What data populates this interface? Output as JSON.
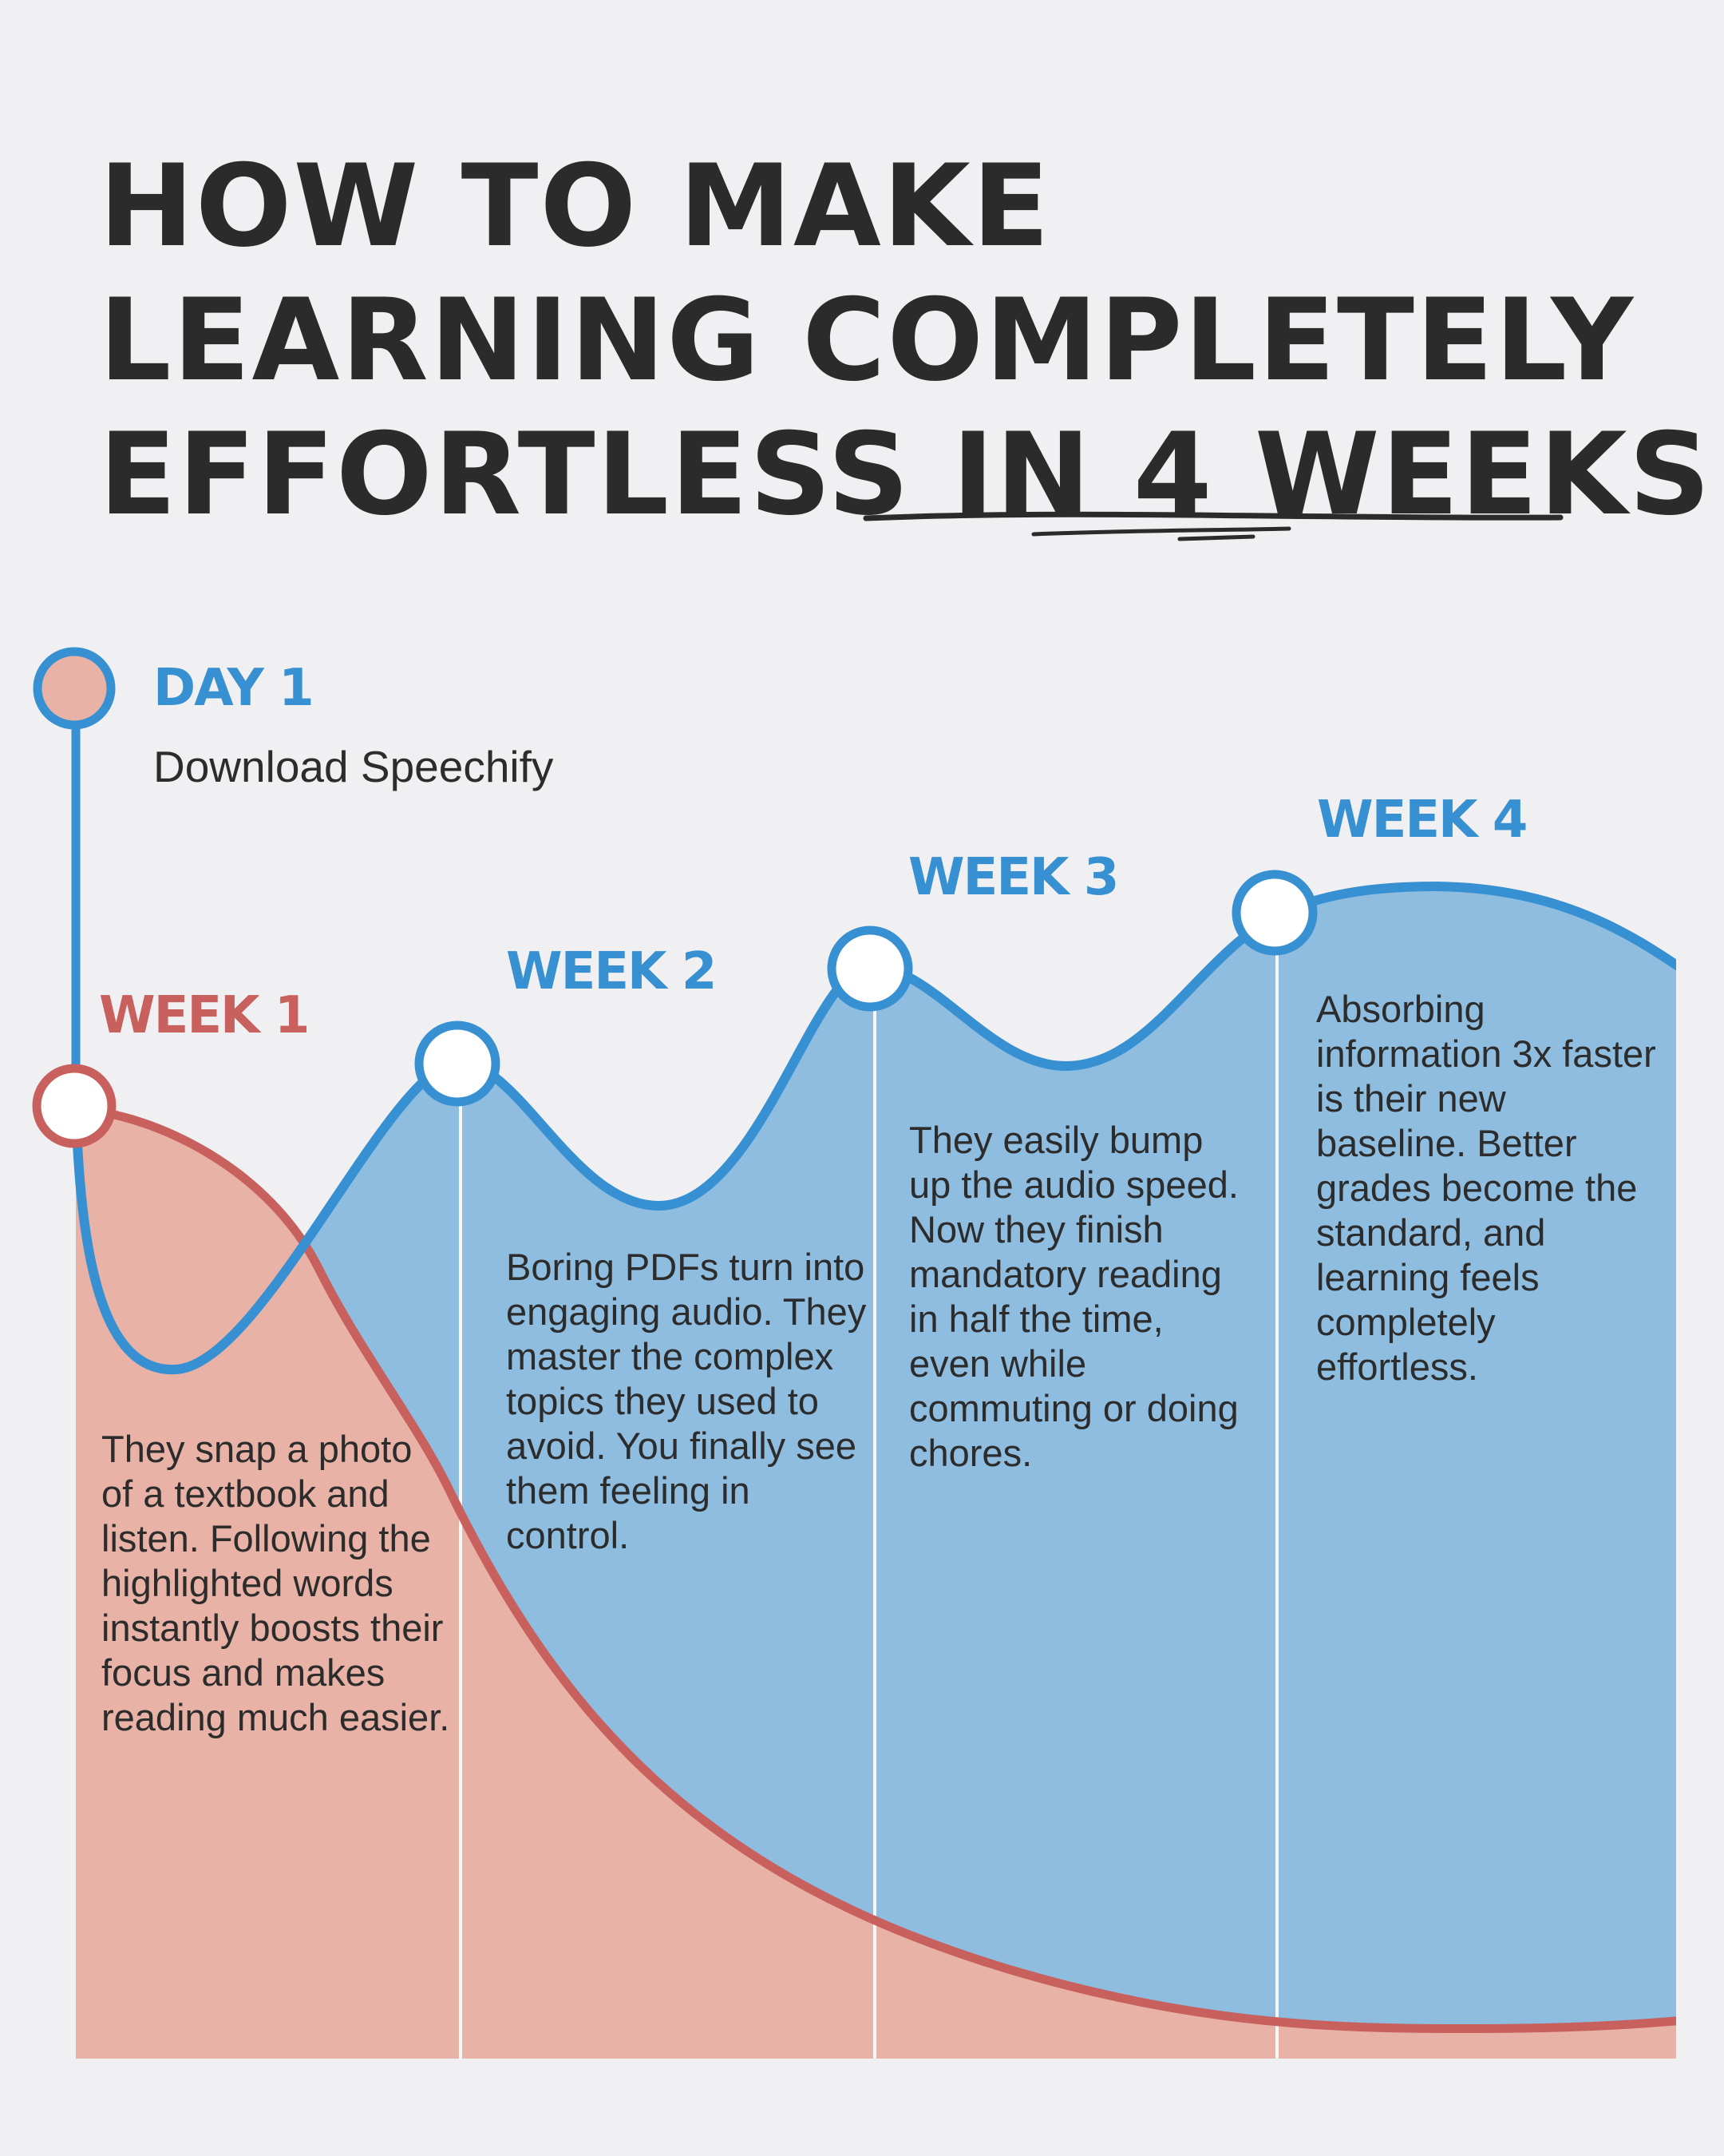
{
  "title": {
    "line1": "HOW TO MAKE",
    "line2": "LEARNING COMPLETELY",
    "line3_prefix": "EFFORTLESS ",
    "line3_emphasis": "IN 4 WEEKS"
  },
  "milestones": [
    {
      "label": "DAY 1",
      "subtitle": "Download Speechify",
      "color": "#3690d1"
    },
    {
      "label": "WEEK 1",
      "color": "#c8605e",
      "text": "They snap a photo of a textbook and listen. Following the highlighted words instantly boosts their focus and makes reading much easier."
    },
    {
      "label": "WEEK 2",
      "color": "#3690d1",
      "text": "Boring PDFs turn into engaging audio. They master the complex topics they used to avoid. You finally see them feeling in control."
    },
    {
      "label": "WEEK 3",
      "color": "#3690d1",
      "text": "They easily bump up the audio speed. Now they finish mandatory reading in half the time, even while commuting or doing chores."
    },
    {
      "label": "WEEK 4",
      "color": "#3690d1",
      "text": "Absorbing information 3x faster is their new baseline. Better grades become the standard, and learning feels completely effortless."
    }
  ],
  "colors": {
    "background": "#f0f0f2",
    "blue_line": "#3690d1",
    "blue_fill": "#8fbde0",
    "red_line": "#c8605e",
    "red_fill": "#e8b3a6",
    "text": "#2b2b2b"
  }
}
